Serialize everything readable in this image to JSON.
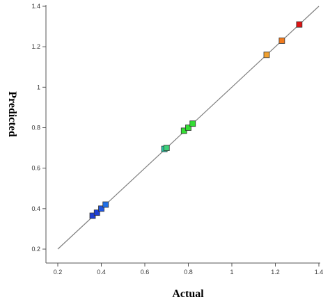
{
  "chart_data": {
    "type": "scatter",
    "xlabel": "Actual",
    "ylabel": "Predicted",
    "xlim": [
      0.2,
      1.4
    ],
    "ylim": [
      0.2,
      1.4
    ],
    "x_ticks": [
      0.2,
      0.4,
      0.6,
      0.8,
      1.0,
      1.2,
      1.4
    ],
    "x_tick_labels": [
      "0.2",
      "0.4",
      "0.6",
      "0.8",
      "1",
      "1.2",
      "1.4"
    ],
    "y_ticks": [
      0.2,
      0.4,
      0.6,
      0.8,
      1.0,
      1.2,
      1.4
    ],
    "y_tick_labels": [
      "0.2",
      "0.4",
      "0.6",
      "0.8",
      "1",
      "1.2",
      "1.4"
    ],
    "grid": false,
    "reference_line": {
      "from": [
        0.2,
        0.2
      ],
      "to": [
        1.4,
        1.4
      ],
      "color": "#808080"
    },
    "points": [
      {
        "x": 0.36,
        "y": 0.365,
        "color": "#1f3fd6"
      },
      {
        "x": 0.38,
        "y": 0.38,
        "color": "#1f3fd6"
      },
      {
        "x": 0.4,
        "y": 0.4,
        "color": "#1f55e0"
      },
      {
        "x": 0.42,
        "y": 0.42,
        "color": "#1f6fe6"
      },
      {
        "x": 0.69,
        "y": 0.695,
        "color": "#26c9a8"
      },
      {
        "x": 0.7,
        "y": 0.7,
        "color": "#3fd17a"
      },
      {
        "x": 0.78,
        "y": 0.785,
        "color": "#33dd33"
      },
      {
        "x": 0.8,
        "y": 0.8,
        "color": "#33dd33"
      },
      {
        "x": 0.82,
        "y": 0.82,
        "color": "#33dd33"
      },
      {
        "x": 1.16,
        "y": 1.16,
        "color": "#f0a030"
      },
      {
        "x": 1.23,
        "y": 1.23,
        "color": "#f07a1e"
      },
      {
        "x": 1.31,
        "y": 1.31,
        "color": "#e01414"
      }
    ]
  }
}
